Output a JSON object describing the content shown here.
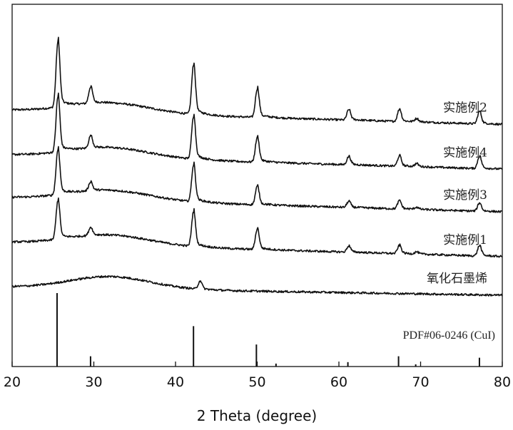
{
  "chart_data": {
    "type": "line",
    "xlabel": "2 Theta (degree)",
    "ylabel": "",
    "xlim": [
      20,
      80
    ],
    "x_ticks": [
      "20",
      "30",
      "40",
      "50",
      "60",
      "70",
      "80"
    ],
    "legend": "inline labels at right end of each curve",
    "series": [
      {
        "name": "实施例2",
        "baseline": 5.25,
        "decay": 0.35,
        "hump": 0.25,
        "peaks": [
          [
            25.6,
            1.6
          ],
          [
            29.6,
            0.4
          ],
          [
            42.2,
            1.2
          ],
          [
            50.0,
            0.7
          ],
          [
            61.2,
            0.25
          ],
          [
            67.4,
            0.3
          ],
          [
            69.5,
            0.08
          ],
          [
            77.2,
            0.3
          ]
        ]
      },
      {
        "name": "实施例4",
        "baseline": 4.15,
        "decay": 0.35,
        "hump": 0.25,
        "peaks": [
          [
            25.6,
            1.35
          ],
          [
            29.6,
            0.3
          ],
          [
            42.2,
            1.05
          ],
          [
            50.0,
            0.6
          ],
          [
            61.2,
            0.2
          ],
          [
            67.4,
            0.25
          ],
          [
            69.5,
            0.07
          ],
          [
            77.2,
            0.3
          ]
        ]
      },
      {
        "name": "实施例3",
        "baseline": 3.1,
        "decay": 0.35,
        "hump": 0.25,
        "peaks": [
          [
            25.6,
            1.1
          ],
          [
            29.6,
            0.22
          ],
          [
            42.2,
            0.9
          ],
          [
            50.0,
            0.45
          ],
          [
            61.2,
            0.15
          ],
          [
            67.4,
            0.2
          ],
          [
            69.5,
            0.05
          ],
          [
            77.2,
            0.2
          ]
        ]
      },
      {
        "name": "实施例1",
        "baseline": 2.0,
        "decay": 0.35,
        "hump": 0.25,
        "peaks": [
          [
            25.6,
            0.95
          ],
          [
            29.6,
            0.2
          ],
          [
            42.2,
            0.85
          ],
          [
            50.0,
            0.5
          ],
          [
            61.2,
            0.15
          ],
          [
            67.4,
            0.2
          ],
          [
            69.5,
            0.05
          ],
          [
            77.2,
            0.25
          ]
        ]
      },
      {
        "name": "氧化石墨烯",
        "baseline": 1.05,
        "decay": 0.2,
        "hump": 0.3,
        "peaks": [
          [
            43.0,
            0.2
          ]
        ]
      }
    ],
    "reference": {
      "name": "PDF#06-0246 (CuI)",
      "lines": [
        [
          25.5,
          100
        ],
        [
          29.6,
          14
        ],
        [
          42.2,
          55
        ],
        [
          49.9,
          30
        ],
        [
          52.3,
          4
        ],
        [
          61.1,
          6
        ],
        [
          67.3,
          14
        ],
        [
          69.4,
          3
        ],
        [
          77.2,
          12
        ]
      ]
    }
  }
}
